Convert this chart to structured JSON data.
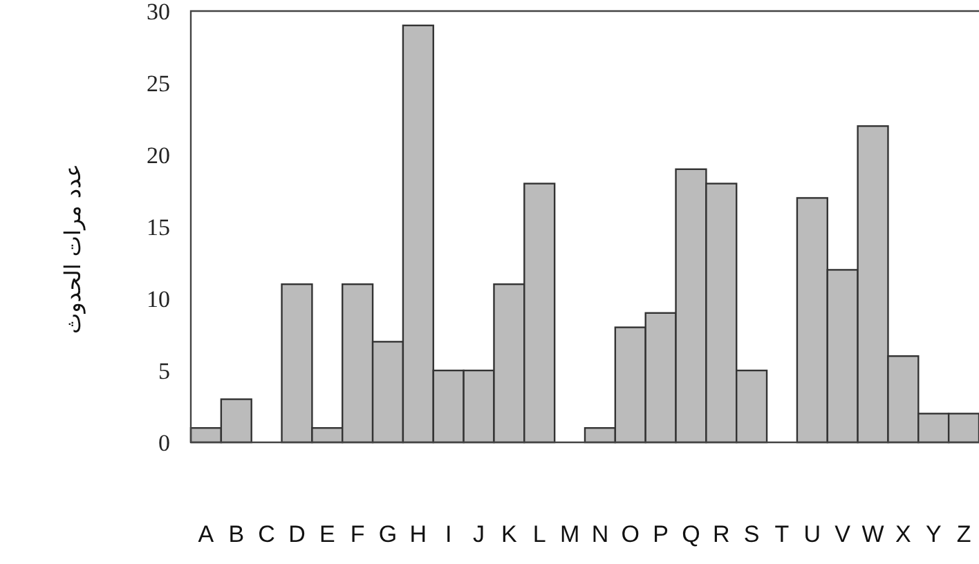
{
  "chart_data": {
    "type": "bar",
    "ylabel": "عدد مرات الحدوث",
    "categories": [
      "A",
      "B",
      "C",
      "D",
      "E",
      "F",
      "G",
      "H",
      "I",
      "J",
      "K",
      "L",
      "M",
      "N",
      "O",
      "P",
      "Q",
      "R",
      "S",
      "T",
      "U",
      "V",
      "W",
      "X",
      "Y",
      "Z"
    ],
    "values": [
      1,
      3,
      0,
      11,
      1,
      11,
      7,
      29,
      5,
      5,
      11,
      18,
      0,
      1,
      8,
      9,
      19,
      18,
      5,
      0,
      17,
      12,
      22,
      6,
      2,
      2
    ],
    "color": "#bbbbbb",
    "ylim": [
      0,
      30
    ],
    "yticks": [
      0,
      5,
      10,
      15,
      20,
      25,
      30
    ],
    "grid": false
  }
}
